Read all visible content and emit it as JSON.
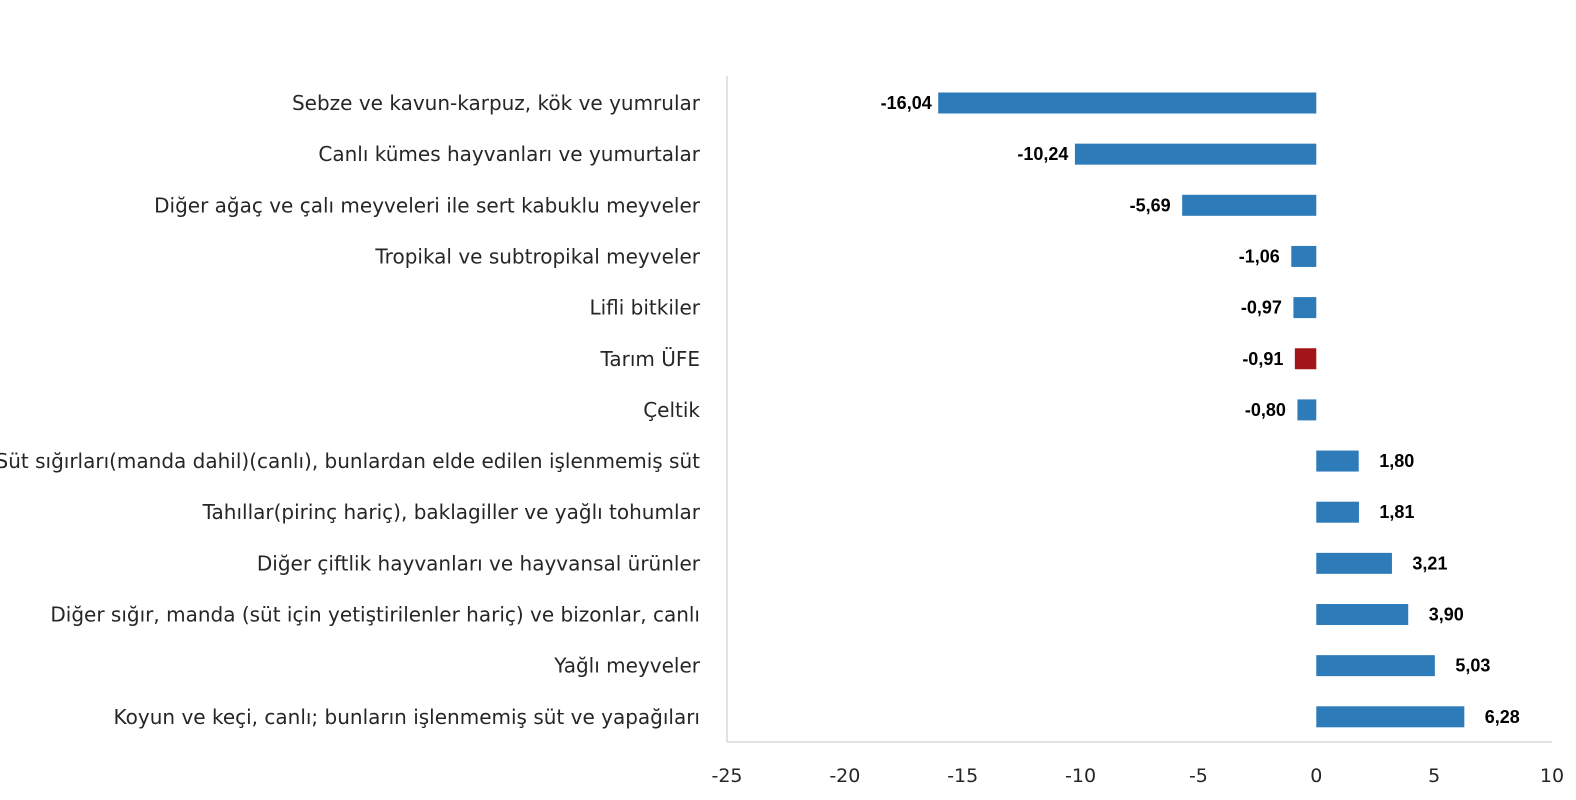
{
  "chart_data": {
    "type": "bar",
    "orientation": "horizontal",
    "categories": [
      "Sebze ve kavun-karpuz, kök ve yumrular",
      "Canlı kümes hayvanları ve yumurtalar",
      "Diğer ağaç ve çalı meyveleri ile sert kabuklu meyveler",
      "Tropikal ve subtropikal meyveler",
      "Lifli bitkiler",
      "Tarım ÜFE",
      "Çeltik",
      "Süt sığırları(manda dahil)(canlı), bunlardan elde edilen işlenmemiş süt",
      "Tahıllar(pirinç hariç), baklagiller ve yağlı tohumlar",
      "Diğer çiftlik hayvanları ve hayvansal ürünler",
      "Diğer sığır, manda (süt için yetiştirilenler hariç) ve bizonlar, canlı",
      "Yağlı meyveler",
      "Koyun ve keçi, canlı; bunların işlenmemiş süt ve yapağıları"
    ],
    "values": [
      -16.04,
      -10.24,
      -5.69,
      -1.06,
      -0.97,
      -0.91,
      -0.8,
      1.8,
      1.81,
      3.21,
      3.9,
      5.03,
      6.28
    ],
    "value_labels": [
      "-16,04",
      "-10,24",
      "-5,69",
      "-1,06",
      "-0,97",
      "-0,91",
      "-0,80",
      "1,80",
      "1,81",
      "3,21",
      "3,90",
      "5,03",
      "6,28"
    ],
    "highlight_index": 5,
    "xlim": [
      -25,
      10
    ],
    "xticks": [
      -25,
      -20,
      -15,
      -10,
      -5,
      0,
      5,
      10
    ],
    "xtick_labels": [
      "-25",
      "-20",
      "-15",
      "-10",
      "-5",
      "0",
      "5",
      "10"
    ],
    "colors": {
      "bar": "#2E7BBA",
      "highlight": "#A3141B",
      "axis": "#D9D9D9"
    },
    "grid": false,
    "legend": "none",
    "title": "",
    "xlabel": "",
    "ylabel": ""
  }
}
